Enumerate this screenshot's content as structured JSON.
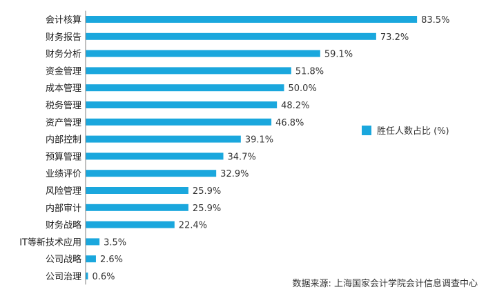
{
  "chart_data": {
    "type": "bar",
    "orientation": "horizontal",
    "categories": [
      "会计核算",
      "财务报告",
      "财务分析",
      "资金管理",
      "成本管理",
      "税务管理",
      "资产管理",
      "内部控制",
      "预算管理",
      "业绩评价",
      "风险管理",
      "内部审计",
      "财务战略",
      "IT等新技术应用",
      "公司战略",
      "公司治理"
    ],
    "series": [
      {
        "name": "胜任人数占比 (%)",
        "values": [
          83.5,
          73.2,
          59.1,
          51.8,
          50.0,
          48.2,
          46.8,
          39.1,
          34.7,
          32.9,
          25.9,
          25.9,
          22.4,
          3.5,
          2.6,
          0.6
        ],
        "labels": [
          "83.5%",
          "73.2%",
          "59.1%",
          "51.8%",
          "50.0%",
          "48.2%",
          "46.8%",
          "39.1%",
          "34.7%",
          "32.9%",
          "25.9%",
          "25.9%",
          "22.4%",
          "3.5%",
          "2.6%",
          "0.6%"
        ]
      }
    ],
    "xlim": [
      0,
      100
    ],
    "legend_position": "right",
    "bar_color": "#1aa7dd",
    "axis_color": "#7f7f7f"
  },
  "source_text": "数据来源: 上海国家会计学院会计信息调查中心"
}
